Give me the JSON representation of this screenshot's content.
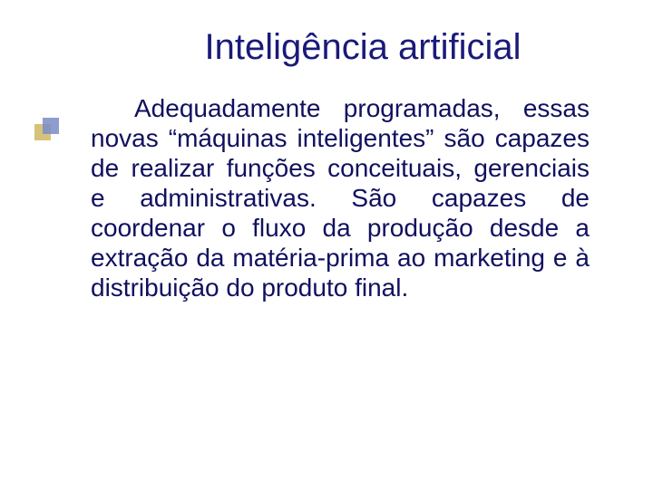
{
  "slide": {
    "title": "Inteligência artificial",
    "body": "Adequadamente programadas, essas novas “máquinas inteligentes” são capazes  de realizar funções conceituais, gerenciais e administrativas. São capazes de  coordenar o fluxo da produção desde a extração da matéria-prima ao marketing  e à distribuição do produto final.",
    "title_color": "#1a1a7a",
    "body_color": "#101060",
    "title_fontsize": 40,
    "body_fontsize": 28,
    "background_color": "#ffffff",
    "bullet_colors": {
      "back_square": "#d6c27a",
      "front_square": "#7a8cc4"
    }
  }
}
